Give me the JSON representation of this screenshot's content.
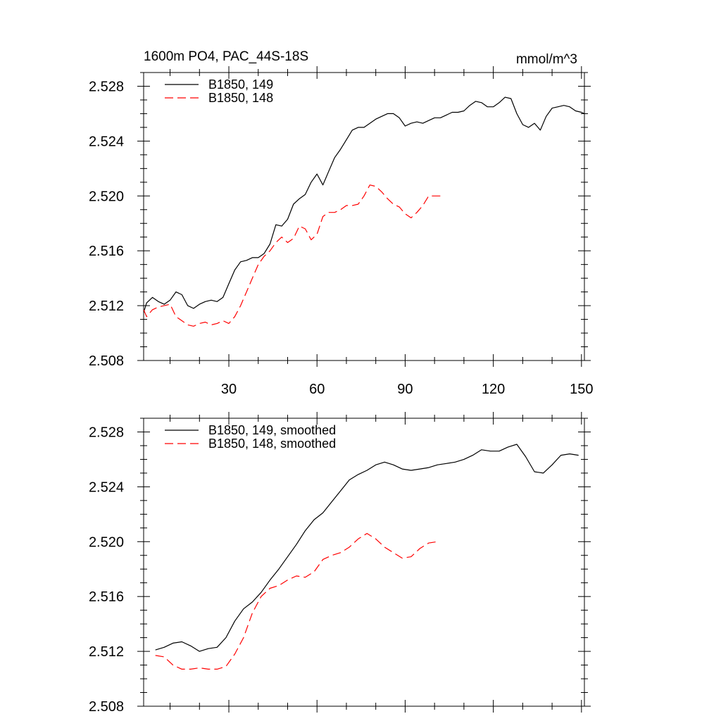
{
  "chart_data": [
    {
      "type": "line",
      "title_left": "1600m PO4, PAC_44S-18S",
      "title_right": "mmol/m^3",
      "xlabel": "",
      "ylabel": "",
      "xlim": [
        1,
        151
      ],
      "ylim": [
        2.508,
        2.529
      ],
      "xticks": [
        30,
        60,
        90,
        120,
        150
      ],
      "xtick_labels": [
        "30",
        "60",
        "90",
        "120",
        "150"
      ],
      "yticks": [
        2.508,
        2.512,
        2.516,
        2.52,
        2.524,
        2.528
      ],
      "ytick_labels": [
        "2.508",
        "2.512",
        "2.516",
        "2.520",
        "2.524",
        "2.528"
      ],
      "legend": "top-left",
      "series": [
        {
          "name": "B1850, 149",
          "color": "#000000",
          "dash": "solid",
          "x": [
            1,
            2,
            4,
            6,
            8,
            10,
            12,
            14,
            16,
            18,
            20,
            22,
            24,
            26,
            28,
            30,
            32,
            34,
            36,
            38,
            40,
            42,
            44,
            46,
            48,
            50,
            52,
            54,
            56,
            58,
            60,
            62,
            64,
            66,
            68,
            70,
            72,
            74,
            76,
            78,
            80,
            82,
            84,
            86,
            88,
            90,
            92,
            94,
            96,
            98,
            100,
            102,
            104,
            106,
            108,
            110,
            112,
            114,
            116,
            118,
            120,
            122,
            124,
            126,
            128,
            130,
            132,
            134,
            136,
            138,
            140,
            142,
            144,
            146,
            148,
            150,
            151
          ],
          "values": [
            2.5115,
            2.5122,
            2.5126,
            2.5123,
            2.5121,
            2.5124,
            2.513,
            2.5128,
            2.512,
            2.5118,
            2.5121,
            2.5123,
            2.5124,
            2.5123,
            2.5126,
            2.5136,
            2.5146,
            2.5152,
            2.5153,
            2.5155,
            2.5155,
            2.5158,
            2.5165,
            2.5179,
            2.5178,
            2.5183,
            2.5194,
            2.5198,
            2.5201,
            2.521,
            2.5216,
            2.5208,
            2.5218,
            2.5228,
            2.5234,
            2.5241,
            2.5248,
            2.525,
            2.525,
            2.5253,
            2.5256,
            2.5258,
            2.526,
            2.526,
            2.5257,
            2.5251,
            2.5253,
            2.5254,
            2.5253,
            2.5255,
            2.5257,
            2.5257,
            2.5259,
            2.5261,
            2.5261,
            2.5262,
            2.5266,
            2.5269,
            2.5268,
            2.5265,
            2.5265,
            2.5268,
            2.5272,
            2.5271,
            2.526,
            2.5252,
            2.525,
            2.5253,
            2.5248,
            2.5258,
            2.5264,
            2.5265,
            2.5266,
            2.5265,
            2.5262,
            2.5261,
            2.526
          ]
        },
        {
          "name": "B1850, 148",
          "color": "#ff0000",
          "dash": "dashed",
          "x": [
            1,
            2,
            4,
            6,
            8,
            10,
            12,
            14,
            16,
            18,
            20,
            22,
            24,
            26,
            28,
            30,
            32,
            34,
            36,
            38,
            40,
            42,
            44,
            46,
            48,
            50,
            52,
            54,
            56,
            58,
            60,
            62,
            64,
            66,
            68,
            70,
            72,
            74,
            76,
            78,
            80,
            82,
            84,
            86,
            88,
            90,
            92,
            94,
            96,
            98,
            100,
            102
          ],
          "values": [
            2.5117,
            2.5112,
            2.5117,
            2.5119,
            2.512,
            2.5121,
            2.5112,
            2.5109,
            2.5106,
            2.5105,
            2.5107,
            2.5108,
            2.5106,
            2.5107,
            2.5109,
            2.5107,
            2.5112,
            2.512,
            2.513,
            2.514,
            2.515,
            2.5156,
            2.516,
            2.5166,
            2.517,
            2.5166,
            2.5169,
            2.5178,
            2.5176,
            2.5168,
            2.5172,
            2.5185,
            2.5188,
            2.5188,
            2.519,
            2.5193,
            2.5193,
            2.5194,
            2.52,
            2.5208,
            2.5207,
            2.5203,
            2.5198,
            2.5194,
            2.5192,
            2.5187,
            2.5184,
            2.5188,
            2.5193,
            2.52,
            2.52,
            2.52
          ]
        }
      ]
    },
    {
      "type": "line",
      "xlabel": "",
      "ylabel": "",
      "xlim": [
        1,
        151
      ],
      "ylim": [
        2.508,
        2.529
      ],
      "xticks": [
        30,
        60,
        90,
        120,
        150
      ],
      "xtick_labels": [],
      "yticks": [
        2.508,
        2.512,
        2.516,
        2.52,
        2.524,
        2.528
      ],
      "ytick_labels": [
        "2.508",
        "2.512",
        "2.516",
        "2.520",
        "2.524",
        "2.528"
      ],
      "legend": "top-left",
      "series": [
        {
          "name": "B1850, 149, smoothed",
          "color": "#000000",
          "dash": "solid",
          "x": [
            5,
            8,
            11,
            14,
            17,
            20,
            23,
            26,
            29,
            32,
            35,
            38,
            41,
            44,
            47,
            50,
            53,
            56,
            59,
            62,
            65,
            68,
            71,
            74,
            77,
            80,
            83,
            86,
            89,
            92,
            95,
            98,
            101,
            104,
            107,
            110,
            113,
            116,
            119,
            122,
            125,
            128,
            131,
            134,
            137,
            140,
            143,
            146,
            149
          ],
          "values": [
            2.5121,
            2.5123,
            2.5126,
            2.5127,
            2.5124,
            2.512,
            2.5122,
            2.5123,
            2.513,
            2.5142,
            2.5151,
            2.5156,
            2.5163,
            2.5172,
            2.518,
            2.5189,
            2.5198,
            2.5208,
            2.5216,
            2.5221,
            2.5229,
            2.5237,
            2.5245,
            2.5249,
            2.5252,
            2.5256,
            2.5258,
            2.5256,
            2.5253,
            2.5252,
            2.5253,
            2.5254,
            2.5256,
            2.5257,
            2.5258,
            2.526,
            2.5263,
            2.5267,
            2.5266,
            2.5266,
            2.5269,
            2.5271,
            2.5262,
            2.5251,
            2.525,
            2.5256,
            2.5263,
            2.5264,
            2.5263
          ]
        },
        {
          "name": "B1850, 148, smoothed",
          "color": "#ff0000",
          "dash": "dashed",
          "x": [
            5,
            8,
            11,
            14,
            17,
            20,
            23,
            26,
            29,
            32,
            35,
            38,
            41,
            44,
            47,
            50,
            53,
            56,
            59,
            62,
            65,
            68,
            71,
            74,
            77,
            80,
            83,
            86,
            89,
            92,
            95,
            98,
            101
          ],
          "values": [
            2.5117,
            2.5116,
            2.511,
            2.5107,
            2.5107,
            2.5108,
            2.5107,
            2.5107,
            2.5109,
            2.5118,
            2.513,
            2.5148,
            2.516,
            2.5166,
            2.5168,
            2.5172,
            2.5175,
            2.5174,
            2.5178,
            2.5187,
            2.519,
            2.5192,
            2.5196,
            2.5202,
            2.5206,
            2.5202,
            2.5196,
            2.5192,
            2.5188,
            2.5189,
            2.5195,
            2.5199,
            2.52
          ]
        }
      ]
    }
  ]
}
